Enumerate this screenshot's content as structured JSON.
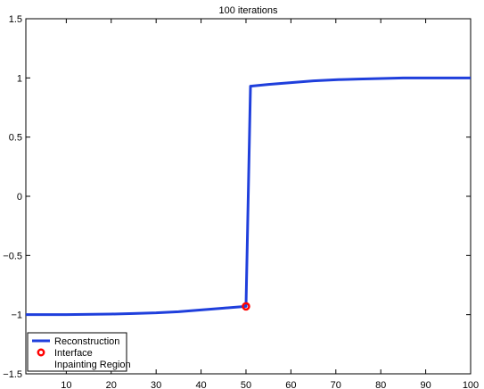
{
  "chart_data": {
    "type": "line",
    "title": "100 iterations",
    "xlabel": "",
    "ylabel": "",
    "xlim": [
      1,
      100
    ],
    "ylim": [
      -1.5,
      1.5
    ],
    "xticks": [
      10,
      20,
      30,
      40,
      50,
      60,
      70,
      80,
      90,
      100
    ],
    "yticks": [
      -1.5,
      -1,
      -0.5,
      0,
      0.5,
      1,
      1.5
    ],
    "ytick_labels": [
      "−1.5",
      "−1",
      "−0.5",
      "0",
      "0.5",
      "1",
      "1.5"
    ],
    "grid": false,
    "legend": {
      "placement": "bottom-left",
      "entries": [
        "Reconstruction",
        "Interface",
        "Inpainting Region"
      ]
    },
    "series": [
      {
        "name": "Reconstruction",
        "color": "#1f3fdc",
        "x": [
          1,
          10,
          20,
          25,
          30,
          35,
          40,
          45,
          50,
          51,
          55,
          60,
          65,
          70,
          75,
          80,
          85,
          90,
          95,
          100
        ],
        "y": [
          -1.0,
          -1.0,
          -0.995,
          -0.99,
          -0.985,
          -0.975,
          -0.96,
          -0.945,
          -0.93,
          0.93,
          0.945,
          0.96,
          0.975,
          0.985,
          0.99,
          0.995,
          1.0,
          1.0,
          1.0,
          1.0
        ]
      },
      {
        "name": "Interface",
        "color": "#ff0000",
        "marker": "circle",
        "x": [
          50
        ],
        "y": [
          -0.93
        ]
      }
    ]
  }
}
